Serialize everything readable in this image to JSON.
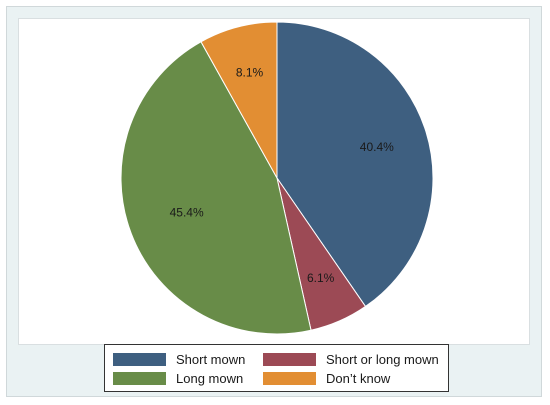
{
  "chart_data": {
    "type": "pie",
    "title": "",
    "start": "12 o'clock",
    "direction": "clockwise",
    "slices": [
      {
        "name": "Short mown",
        "value": 40.4,
        "label": "40.4%",
        "color": "#3e5f80"
      },
      {
        "name": "Short or long mown",
        "value": 6.1,
        "label": "6.1%",
        "color": "#9c4a55"
      },
      {
        "name": "Long mown",
        "value": 45.4,
        "label": "45.4%",
        "color": "#688c48"
      },
      {
        "name": "Don't know",
        "value": 8.1,
        "label": "8.1%",
        "color": "#e28e33"
      }
    ],
    "legend": {
      "placement": "bottom",
      "columns": 2,
      "entries": [
        "Short mown",
        "Short or long mown",
        "Long mown",
        "Don’t know"
      ]
    },
    "colors": {
      "frame_background": "#eaf2f3",
      "plot_background": "#ffffff",
      "slice_border": "#ffffff"
    }
  }
}
